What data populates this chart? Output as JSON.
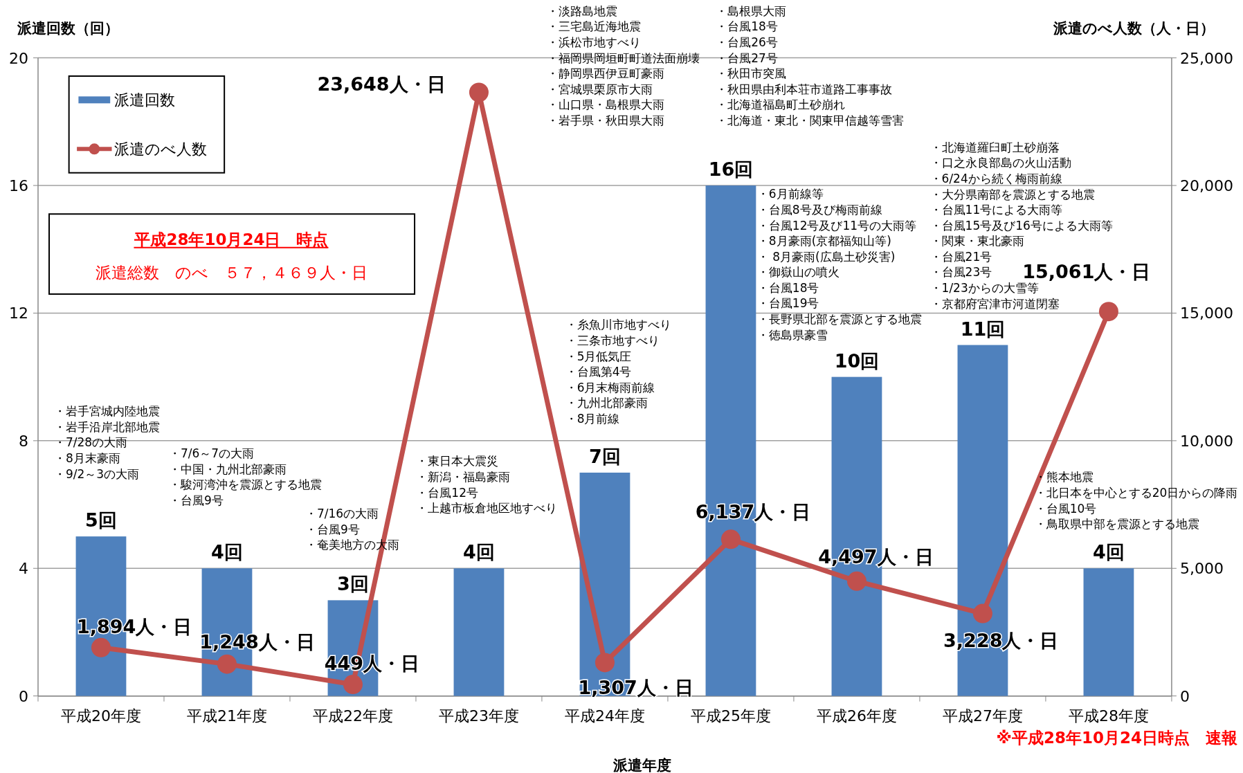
{
  "chart_data": {
    "type": "bar",
    "categories": [
      "平成20年度",
      "平成21年度",
      "平成22年度",
      "平成23年度",
      "平成24年度",
      "平成25年度",
      "平成26年度",
      "平成27年度",
      "平成28年度"
    ],
    "series": [
      {
        "name": "派遣回数",
        "color": "#4f81bd",
        "values": [
          5,
          4,
          3,
          4,
          7,
          16,
          10,
          11,
          4
        ],
        "value_labels": [
          "5回",
          "4回",
          "3回",
          "4回",
          "7回",
          "16回",
          "10回",
          "11回",
          "4回"
        ]
      },
      {
        "type": "line",
        "name": "派遣のべ人数",
        "color": "#c0504d",
        "axis": "y2",
        "marker": "circle",
        "line_style": "solid",
        "values": [
          1894,
          1248,
          449,
          23648,
          1307,
          6137,
          4497,
          3228,
          15061
        ],
        "value_labels": [
          "1,894人・日",
          "1,248人・日",
          "449人・日",
          "23,648人・日",
          "1,307人・日",
          "6,137人・日",
          "4,497人・日",
          "3,228人・日",
          "15,061人・日"
        ]
      }
    ],
    "ylabel": "派遣回数（回）",
    "y2label": "派遣のべ人数（人・日）",
    "xlabel": "派遣年度",
    "ylim": [
      0,
      20
    ],
    "yticks": [
      0,
      4,
      8,
      12,
      16,
      20
    ],
    "y2lim": [
      0,
      25000
    ],
    "y2ticks": [
      {
        "value": 0,
        "label": "0"
      },
      {
        "value": 5000,
        "label": "5,000"
      },
      {
        "value": 10000,
        "label": "10,000"
      },
      {
        "value": 15000,
        "label": "15,000"
      },
      {
        "value": 20000,
        "label": "20,000"
      },
      {
        "value": 25000,
        "label": "25,000"
      }
    ],
    "grid": "y",
    "legend": "top left",
    "annotations": [
      "・岩手宮城内陸地震",
      "・岩手沿岸北部地震",
      "・7/28の大雨",
      "・8月末豪雨",
      "・9/2～3の大雨",
      "・7/6～7の大雨",
      "・中国・九州北部豪雨",
      "・駿河湾沖を震源とする地震",
      "・台風9号",
      "・7/16の大雨",
      "・台風9号",
      "・奄美地方の大雨",
      "・東日本大震災",
      "・新潟・福島豪雨",
      "・台風12号",
      "・上越市板倉地区地すべり",
      "・淡路島地震",
      "・三宅島近海地震",
      "・浜松市地すべり",
      "・福岡県岡垣町町道法面崩壊",
      "・静岡県西伊豆町豪雨",
      "・宮城県栗原市大雨",
      "・山口県・島根県大雨",
      "・岩手県・秋田県大雨",
      "・島根県大雨",
      "・台風18号",
      "・台風26号",
      "・台風27号",
      "・秋田市突風",
      "・秋田県由利本荘市道路工事事故",
      "・北海道福島町土砂崩れ",
      "・北海道・東北・関東甲信越等雪害",
      "・糸魚川市地すべり",
      "・三条市地すべり",
      "・5月低気圧",
      "・台風第4号",
      "・6月末梅雨前線",
      "・九州北部豪雨",
      "・8月前線",
      "・6月前線等",
      "・台風8号及び梅雨前線",
      "・台風12号及び11号の大雨等",
      "・8月豪雨(京都福知山等)",
      "・ 8月豪雨(広島土砂災害)",
      "・御嶽山の噴火",
      "・台風18号",
      "・台風19号",
      "・長野県北部を震源とする地震",
      "・徳島県豪雪",
      "・北海道羅臼町土砂崩落",
      "・口之永良部島の火山活動",
      "・6/24から続く梅雨前線",
      "・大分県南部を震源とする地震",
      "・台風11号による大雨等",
      "・台風15号及び16号による大雨等",
      "・関東・東北豪雨",
      "・台風21号",
      "・台風23号",
      "・1/23からの大雪等",
      "・京都府宮津市河道閉塞",
      "・熊本地震",
      "・北日本を中心とする20日からの降雨",
      "・台風10号",
      "・鳥取県中部を震源とする地震",
      "平成28年10月24日　時点",
      "派遣総数　のべ　５７，４６９人・日",
      "※平成28年10月24日時点　速報"
    ]
  }
}
